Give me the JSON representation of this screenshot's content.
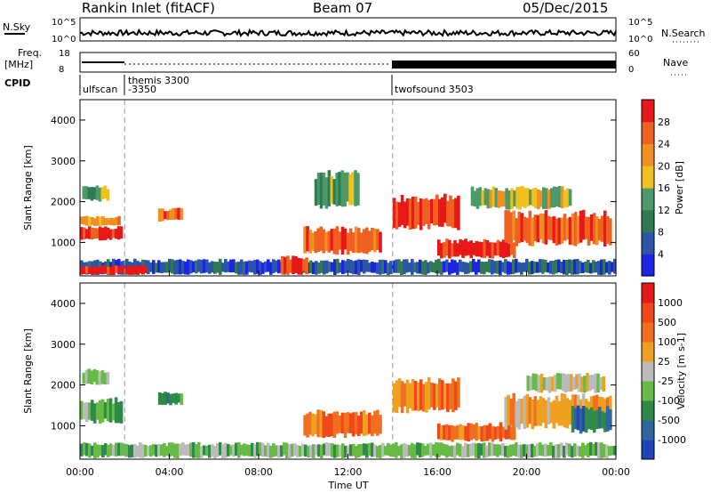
{
  "header": {
    "title": "Rankin Inlet (fitACF)",
    "beam": "Beam 07",
    "date": "05/Dec/2015"
  },
  "top_panels": {
    "nsky_label": "N.Sky",
    "nsky_ticks": [
      "10^5",
      "10^0"
    ],
    "nsearch_label": "N.Search",
    "freq_label_1": "Freq.",
    "freq_label_2": "[MHz]",
    "freq_ticks": [
      "18",
      "8"
    ],
    "nave_label": "Nave",
    "nave_ticks": [
      "60",
      "0"
    ],
    "cpid_label": "CPID",
    "cpid_segments": [
      {
        "label": "ulfscan",
        "start_h": 0,
        "end_h": 2
      },
      {
        "label": "themis 3300",
        "start_h": 2,
        "end_h": 14
      },
      {
        "label": "-3350",
        "start_h": 2,
        "end_h": 14
      },
      {
        "label": "twofsound 3503",
        "start_h": 14,
        "end_h": 24
      }
    ]
  },
  "colors": {
    "power_scale": [
      "#1d24e8",
      "#2b56a8",
      "#2f7a52",
      "#4c9a6a",
      "#f0c020",
      "#f09020",
      "#f06020",
      "#e81818"
    ],
    "velocity_scale": [
      "#2244bb",
      "#2f66a0",
      "#2f8a4a",
      "#66bb44",
      "#bbbbbb",
      "#f0a020",
      "#f07020",
      "#f04818",
      "#e81818"
    ]
  },
  "chart_data": [
    {
      "type": "heatmap",
      "panel": "power",
      "x_unit": "Time UT (hours)",
      "xlim": [
        0,
        24
      ],
      "ylim": [
        180,
        4500
      ],
      "xlabel": "",
      "ylabel": "Slant Range [km]",
      "xticks": [
        "00:00",
        "04:00",
        "08:00",
        "12:00",
        "16:00",
        "20:00",
        "00:00"
      ],
      "yticks": [
        1000,
        2000,
        3000,
        4000
      ],
      "colorbar_label": "Power [dB]",
      "colorbar_ticks": [
        "4",
        "8",
        "12",
        "16",
        "20",
        "24",
        "28"
      ],
      "blobs": [
        {
          "t0": 0.0,
          "t1": 1.9,
          "r0": 1050,
          "r1": 1400,
          "level": 7
        },
        {
          "t0": 0.0,
          "t1": 1.8,
          "r0": 1400,
          "r1": 1650,
          "level": 5
        },
        {
          "t0": 0.1,
          "t1": 1.3,
          "r0": 2000,
          "r1": 2400,
          "level": 3
        },
        {
          "t0": 0.0,
          "t1": 24,
          "r0": 200,
          "r1": 600,
          "level": 1
        },
        {
          "t0": 0.0,
          "t1": 3.0,
          "r0": 200,
          "r1": 450,
          "level": 7
        },
        {
          "t0": 9.0,
          "t1": 10.2,
          "r0": 200,
          "r1": 700,
          "level": 7
        },
        {
          "t0": 3.5,
          "t1": 4.6,
          "r0": 1500,
          "r1": 1850,
          "level": 6
        },
        {
          "t0": 10.0,
          "t1": 13.5,
          "r0": 700,
          "r1": 1400,
          "level": 6
        },
        {
          "t0": 10.5,
          "t1": 12.5,
          "r0": 1800,
          "r1": 2800,
          "level": 3
        },
        {
          "t0": 14.0,
          "t1": 17.0,
          "r0": 1300,
          "r1": 2200,
          "level": 7
        },
        {
          "t0": 16.0,
          "t1": 19.5,
          "r0": 600,
          "r1": 1100,
          "level": 7
        },
        {
          "t0": 19.0,
          "t1": 23.8,
          "r0": 900,
          "r1": 1800,
          "level": 6
        },
        {
          "t0": 17.5,
          "t1": 22.0,
          "r0": 1800,
          "r1": 2400,
          "level": 4
        }
      ]
    },
    {
      "type": "heatmap",
      "panel": "velocity",
      "x_unit": "Time UT (hours)",
      "xlim": [
        0,
        24
      ],
      "ylim": [
        180,
        4500
      ],
      "xlabel": "Time UT",
      "ylabel": "Slant Range [km]",
      "xticks": [
        "00:00",
        "04:00",
        "08:00",
        "12:00",
        "16:00",
        "20:00",
        "00:00"
      ],
      "yticks": [
        1000,
        2000,
        3000,
        4000
      ],
      "colorbar_label": "Velocity [m s-1]",
      "colorbar_ticks": [
        "1000",
        "500",
        "100",
        "25",
        "-25",
        "-100",
        "-500",
        "-1000"
      ],
      "blobs": [
        {
          "t0": 0.0,
          "t1": 1.9,
          "r0": 1050,
          "r1": 1700,
          "level": 3
        },
        {
          "t0": 0.1,
          "t1": 1.3,
          "r0": 2000,
          "r1": 2400,
          "level": 3
        },
        {
          "t0": 0.0,
          "t1": 24,
          "r0": 200,
          "r1": 600,
          "level": 3
        },
        {
          "t0": 3.5,
          "t1": 4.6,
          "r0": 1500,
          "r1": 1850,
          "level": 2
        },
        {
          "t0": 10.0,
          "t1": 13.5,
          "r0": 700,
          "r1": 1400,
          "level": 6
        },
        {
          "t0": 14.0,
          "t1": 17.0,
          "r0": 1300,
          "r1": 2200,
          "level": 6
        },
        {
          "t0": 16.0,
          "t1": 19.5,
          "r0": 600,
          "r1": 1100,
          "level": 6
        },
        {
          "t0": 19.0,
          "t1": 23.8,
          "r0": 900,
          "r1": 1800,
          "level": 5
        },
        {
          "t0": 20.0,
          "t1": 23.5,
          "r0": 1800,
          "r1": 2300,
          "level": 4
        },
        {
          "t0": 22.0,
          "t1": 23.8,
          "r0": 800,
          "r1": 1500,
          "level": 1
        }
      ]
    }
  ]
}
